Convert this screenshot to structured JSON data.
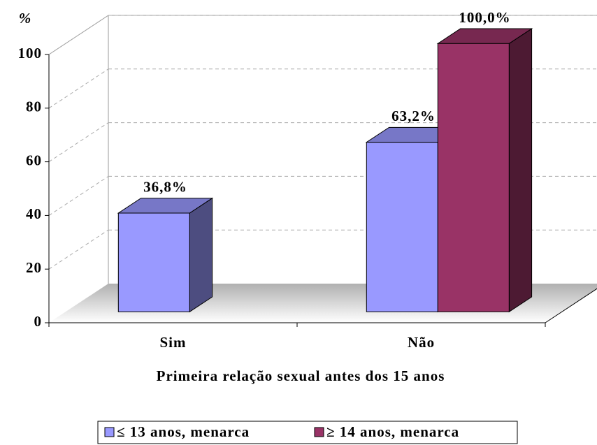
{
  "chart_data": {
    "type": "bar3d",
    "y_label": "%",
    "x_label": "Primeira relação sexual antes dos 15 anos",
    "categories": [
      "Sim",
      "Não"
    ],
    "series": [
      {
        "name": "≤ 13 anos, menarca",
        "color": "#9999ff",
        "values": [
          36.8,
          63.2
        ],
        "value_labels": [
          "36,8%",
          "63,2%"
        ]
      },
      {
        "name": "≥ 14 anos, menarca",
        "color": "#993366",
        "values": [
          null,
          100.0
        ],
        "value_labels": [
          null,
          "100,0%"
        ]
      }
    ],
    "ylim": [
      0,
      100
    ],
    "yticks": [
      0,
      20,
      40,
      60,
      80,
      100
    ],
    "grid": true,
    "legend": "bottom"
  }
}
